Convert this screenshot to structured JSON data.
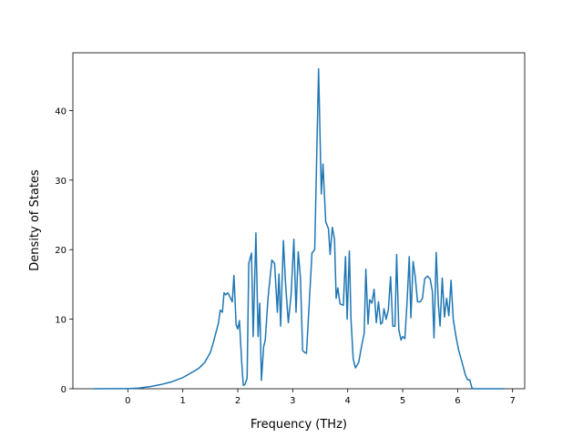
{
  "chart_data": {
    "type": "line",
    "xlabel": "Frequency (THz)",
    "ylabel": "Density of States",
    "x": [
      -0.63,
      0,
      0.2,
      0.4,
      0.6,
      0.8,
      1.0,
      1.2,
      1.3,
      1.4,
      1.5,
      1.55,
      1.6,
      1.65,
      1.68,
      1.72,
      1.75,
      1.78,
      1.82,
      1.87,
      1.9,
      1.93,
      1.97,
      2.0,
      2.03,
      2.07,
      2.1,
      2.13,
      2.17,
      2.2,
      2.25,
      2.28,
      2.33,
      2.37,
      2.4,
      2.43,
      2.47,
      2.5,
      2.55,
      2.62,
      2.67,
      2.72,
      2.75,
      2.78,
      2.83,
      2.87,
      2.92,
      2.97,
      3.02,
      3.06,
      3.1,
      3.14,
      3.18,
      3.22,
      3.25,
      3.35,
      3.4,
      3.47,
      3.52,
      3.55,
      3.6,
      3.65,
      3.68,
      3.72,
      3.76,
      3.79,
      3.82,
      3.86,
      3.92,
      3.96,
      3.99,
      4.03,
      4.06,
      4.1,
      4.14,
      4.2,
      4.25,
      4.3,
      4.33,
      4.37,
      4.4,
      4.44,
      4.48,
      4.52,
      4.56,
      4.6,
      4.63,
      4.66,
      4.7,
      4.74,
      4.78,
      4.82,
      4.86,
      4.89,
      4.93,
      4.97,
      5.0,
      5.04,
      5.08,
      5.12,
      5.15,
      5.19,
      5.23,
      5.27,
      5.32,
      5.36,
      5.4,
      5.45,
      5.5,
      5.54,
      5.57,
      5.61,
      5.65,
      5.68,
      5.72,
      5.76,
      5.8,
      5.84,
      5.88,
      5.92,
      5.97,
      6.02,
      6.08,
      6.14,
      6.18,
      6.22,
      6.26,
      6.3,
      6.85
    ],
    "series": [
      {
        "color": "#1f77b4",
        "values": [
          0,
          0.02,
          0.1,
          0.3,
          0.6,
          1.0,
          1.6,
          2.5,
          3.0,
          3.8,
          5.2,
          6.5,
          8,
          9.5,
          11.3,
          11,
          13.8,
          13.5,
          13.8,
          13,
          12.5,
          16.3,
          9.2,
          8.6,
          9.8,
          4,
          0.5,
          0.6,
          1.5,
          18,
          19.5,
          7.5,
          22.4,
          7.5,
          12.3,
          1.2,
          6,
          7,
          13,
          18.5,
          18,
          11,
          16.5,
          9,
          21.3,
          15,
          9.5,
          13.5,
          21.5,
          11,
          19.7,
          16,
          5.5,
          5.2,
          5.1,
          19.5,
          20,
          46,
          28,
          32.3,
          24,
          23,
          19.3,
          23.2,
          21.5,
          13,
          14.5,
          12.2,
          12,
          19,
          10,
          19.8,
          10,
          4.3,
          3,
          3.8,
          6,
          8,
          17.2,
          9.3,
          12.8,
          12.3,
          14.3,
          9.5,
          12.5,
          9.3,
          9.5,
          11.5,
          10,
          11.4,
          16.1,
          9,
          9,
          19.3,
          8.5,
          7,
          7.5,
          7.2,
          12.5,
          19,
          10.2,
          18.3,
          16,
          12.5,
          12.5,
          13,
          15.8,
          16.2,
          15.8,
          14,
          7.3,
          19.6,
          12,
          9,
          15.9,
          10.3,
          13,
          10.5,
          15.6,
          10,
          7.5,
          5.5,
          3.8,
          2,
          1.3,
          1.3,
          0.1,
          0,
          0
        ]
      }
    ],
    "xlim": [
      -1.0,
      7.22
    ],
    "ylim": [
      0,
      48.3
    ],
    "xticks": [
      0,
      1,
      2,
      3,
      4,
      5,
      6,
      7
    ],
    "yticks": [
      0,
      10,
      20,
      30,
      40
    ]
  }
}
